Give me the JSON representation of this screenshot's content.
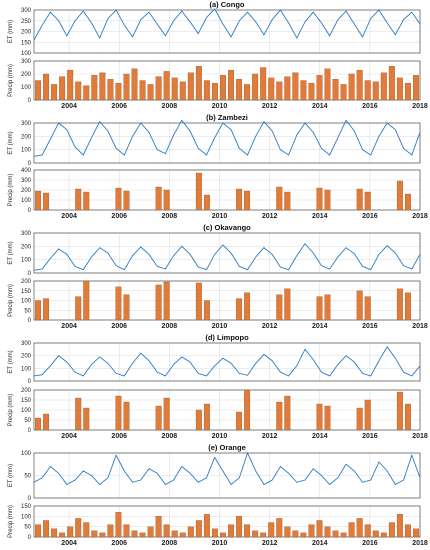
{
  "colors": {
    "et_line": "#2b7bc4",
    "precip_bar": "#e07b39",
    "precip_edge": "#8c4a1e",
    "grid": "#d9d9d9",
    "axis": "#333333"
  },
  "chart_data": [
    {
      "panel": "(a) Congo",
      "type": "line",
      "title": "(a) Congo",
      "ylabel": "ET (mm)",
      "ylim": [
        100,
        300
      ],
      "yticks": [
        100,
        150,
        200,
        250,
        300
      ],
      "xlim": [
        2002.6,
        2018.0
      ],
      "xticks": [
        "2004",
        "2006",
        "2008",
        "2010",
        "2012",
        "2014",
        "2016",
        "2018"
      ],
      "series": [
        {
          "values": [
            160,
            230,
            290,
            250,
            180,
            250,
            295,
            240,
            170,
            260,
            300,
            230,
            175,
            255,
            290,
            235,
            180,
            250,
            295,
            245,
            190,
            265,
            305,
            235,
            175,
            250,
            290,
            245,
            185,
            255,
            300,
            240,
            170,
            245,
            290,
            240,
            180,
            255,
            295,
            235,
            175,
            260,
            300,
            240,
            185,
            255,
            290,
            235
          ]
        }
      ]
    },
    {
      "panel": "(a) Congo",
      "type": "bar",
      "ylabel": "Precip (mm)",
      "ylim": [
        0,
        300
      ],
      "yticks": [
        0,
        100,
        200,
        300
      ],
      "xticks": [
        "2004",
        "2006",
        "2008",
        "2010",
        "2012",
        "2014",
        "2016",
        "2018"
      ],
      "series": [
        {
          "values": [
            150,
            200,
            120,
            180,
            230,
            140,
            110,
            190,
            210,
            160,
            130,
            200,
            240,
            150,
            120,
            180,
            220,
            170,
            140,
            210,
            260,
            150,
            130,
            190,
            230,
            160,
            120,
            200,
            250,
            170,
            140,
            180,
            210,
            150,
            130,
            190,
            240,
            160,
            120,
            200,
            230,
            150,
            140,
            210,
            260,
            170,
            130,
            190
          ]
        }
      ]
    },
    {
      "panel": "(b) Zambezi",
      "type": "line",
      "title": "(b) Zambezi",
      "ylabel": "ET (mm)",
      "ylim": [
        0,
        300
      ],
      "yticks": [
        0,
        100,
        200,
        300
      ],
      "xlim": [
        2002.6,
        2018.0
      ],
      "xticks": [
        "2004",
        "2006",
        "2008",
        "2010",
        "2012",
        "2014",
        "2016",
        "2018"
      ],
      "series": [
        {
          "values": [
            50,
            60,
            180,
            300,
            250,
            120,
            60,
            190,
            310,
            240,
            110,
            60,
            200,
            300,
            230,
            100,
            70,
            210,
            320,
            240,
            110,
            60,
            190,
            300,
            250,
            110,
            60,
            200,
            310,
            240,
            100,
            60,
            210,
            300,
            230,
            110,
            60,
            190,
            320,
            240,
            100,
            60,
            200,
            300,
            250,
            110,
            60,
            230
          ]
        }
      ]
    },
    {
      "panel": "(b) Zambezi",
      "type": "bar",
      "ylabel": "Precip (mm)",
      "ylim": [
        0,
        400
      ],
      "yticks": [
        0,
        100,
        200,
        300,
        400
      ],
      "xticks": [
        "2004",
        "2006",
        "2008",
        "2010",
        "2012",
        "2014",
        "2016",
        "2018"
      ],
      "series": [
        {
          "values": [
            190,
            170,
            0,
            0,
            0,
            210,
            180,
            0,
            0,
            0,
            220,
            190,
            0,
            0,
            0,
            230,
            200,
            0,
            0,
            0,
            370,
            150,
            0,
            0,
            0,
            210,
            190,
            0,
            0,
            0,
            230,
            180,
            0,
            0,
            0,
            220,
            200,
            0,
            0,
            0,
            210,
            180,
            0,
            0,
            0,
            290,
            160,
            0
          ]
        }
      ]
    },
    {
      "panel": "(c) Okavango",
      "type": "line",
      "title": "(c) Okavango",
      "ylabel": "ET (mm)",
      "ylim": [
        0,
        300
      ],
      "yticks": [
        0,
        100,
        200,
        300
      ],
      "xlim": [
        2002.6,
        2018.0
      ],
      "xticks": [
        "2004",
        "2006",
        "2008",
        "2010",
        "2012",
        "2014",
        "2016",
        "2018"
      ],
      "series": [
        {
          "values": [
            20,
            30,
            110,
            180,
            140,
            50,
            25,
            120,
            190,
            150,
            55,
            25,
            130,
            195,
            140,
            50,
            30,
            130,
            200,
            140,
            45,
            25,
            140,
            210,
            150,
            50,
            25,
            120,
            190,
            140,
            45,
            25,
            130,
            220,
            150,
            55,
            30,
            120,
            190,
            145,
            50,
            25,
            140,
            205,
            150,
            55,
            30,
            140
          ]
        }
      ]
    },
    {
      "panel": "(c) Okavango",
      "type": "bar",
      "ylabel": "Precip (mm)",
      "ylim": [
        0,
        200
      ],
      "yticks": [
        0,
        50,
        100,
        150,
        200
      ],
      "xticks": [
        "2004",
        "2006",
        "2008",
        "2010",
        "2012",
        "2014",
        "2016",
        "2018"
      ],
      "series": [
        {
          "values": [
            100,
            110,
            0,
            0,
            0,
            120,
            200,
            0,
            0,
            0,
            170,
            130,
            0,
            0,
            0,
            180,
            195,
            0,
            0,
            0,
            190,
            100,
            0,
            0,
            0,
            110,
            140,
            0,
            0,
            0,
            130,
            160,
            0,
            0,
            0,
            120,
            130,
            0,
            0,
            0,
            150,
            120,
            0,
            0,
            0,
            160,
            140,
            0
          ]
        }
      ]
    },
    {
      "panel": "(d) Limpopo",
      "type": "line",
      "title": "(d) Limpopo",
      "ylabel": "ET (mm)",
      "ylim": [
        0,
        300
      ],
      "yticks": [
        0,
        100,
        200,
        300
      ],
      "xlim": [
        2002.6,
        2018.0
      ],
      "xticks": [
        "2004",
        "2006",
        "2008",
        "2010",
        "2012",
        "2014",
        "2016",
        "2018"
      ],
      "series": [
        {
          "values": [
            40,
            50,
            120,
            200,
            150,
            70,
            40,
            130,
            190,
            140,
            60,
            40,
            140,
            220,
            160,
            70,
            40,
            130,
            190,
            150,
            60,
            40,
            120,
            180,
            140,
            60,
            45,
            140,
            210,
            160,
            70,
            40,
            120,
            250,
            170,
            70,
            40,
            130,
            200,
            150,
            60,
            40,
            160,
            270,
            180,
            70,
            40,
            120
          ]
        }
      ]
    },
    {
      "panel": "(d) Limpopo",
      "type": "bar",
      "ylabel": "Precip (mm)",
      "ylim": [
        0,
        200
      ],
      "yticks": [
        0,
        50,
        100,
        150,
        200
      ],
      "xticks": [
        "2004",
        "2006",
        "2008",
        "2010",
        "2012",
        "2014",
        "2016",
        "2018"
      ],
      "series": [
        {
          "values": [
            60,
            80,
            0,
            0,
            0,
            160,
            110,
            0,
            0,
            0,
            170,
            140,
            0,
            0,
            0,
            120,
            160,
            0,
            0,
            0,
            100,
            130,
            0,
            0,
            0,
            90,
            210,
            0,
            0,
            0,
            140,
            170,
            0,
            0,
            0,
            130,
            120,
            0,
            0,
            0,
            110,
            150,
            0,
            0,
            0,
            190,
            130,
            0
          ]
        }
      ]
    },
    {
      "panel": "(e) Orange",
      "type": "line",
      "title": "(e) Orange",
      "ylabel": "ET (mm)",
      "ylim": [
        0,
        100
      ],
      "yticks": [
        0,
        50,
        100
      ],
      "xlim": [
        2002.6,
        2018.0
      ],
      "xticks": [
        "2004",
        "2006",
        "2008",
        "2010",
        "2012",
        "2014",
        "2016",
        "2018"
      ],
      "series": [
        {
          "values": [
            35,
            45,
            70,
            55,
            30,
            40,
            60,
            50,
            30,
            45,
            95,
            60,
            35,
            40,
            65,
            55,
            30,
            40,
            70,
            55,
            35,
            45,
            90,
            60,
            30,
            45,
            100,
            60,
            30,
            40,
            70,
            55,
            35,
            40,
            65,
            50,
            30,
            45,
            75,
            60,
            35,
            40,
            80,
            60,
            30,
            40,
            95,
            45
          ]
        }
      ]
    },
    {
      "panel": "(e) Orange",
      "type": "bar",
      "ylabel": "Precip (mm)",
      "ylim": [
        0,
        150
      ],
      "yticks": [
        0,
        50,
        100,
        150
      ],
      "xticks": [
        "2004",
        "2006",
        "2008",
        "2010",
        "2012",
        "2014",
        "2016",
        "2018"
      ],
      "series": [
        {
          "values": [
            60,
            80,
            40,
            20,
            50,
            90,
            70,
            30,
            20,
            60,
            120,
            60,
            30,
            20,
            50,
            100,
            60,
            30,
            20,
            50,
            80,
            110,
            40,
            20,
            60,
            100,
            60,
            30,
            20,
            70,
            90,
            50,
            30,
            20,
            60,
            80,
            50,
            30,
            20,
            70,
            90,
            60,
            30,
            20,
            70,
            110,
            60,
            40
          ]
        }
      ]
    }
  ]
}
